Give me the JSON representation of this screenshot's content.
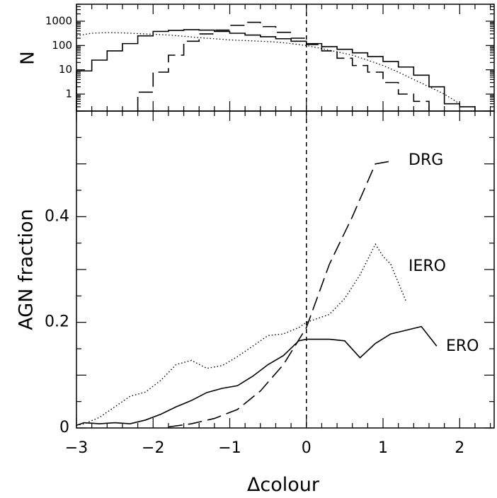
{
  "chart_data": [
    {
      "type": "line",
      "panel": "histogram",
      "ylabel": "N",
      "yscale": "log",
      "ylim": [
        0.2,
        5000
      ],
      "xlim": [
        -3,
        2.45
      ],
      "ytick_labels": [
        "1000",
        "100",
        "10",
        "1"
      ],
      "ytick_values": [
        1000,
        100,
        10,
        1
      ],
      "step": true,
      "series": [
        {
          "style": "solid",
          "bin_edges": [
            -3.0,
            -2.8,
            -2.6,
            -2.4,
            -2.2,
            -2.0,
            -1.8,
            -1.6,
            -1.4,
            -1.2,
            -1.0,
            -0.8,
            -0.6,
            -0.4,
            -0.2,
            0.0,
            0.2,
            0.4,
            0.6,
            0.8,
            1.0,
            1.2,
            1.4,
            1.6,
            1.8,
            2.0,
            2.2
          ],
          "counts": [
            9,
            25,
            60,
            120,
            250,
            380,
            420,
            450,
            430,
            380,
            320,
            270,
            230,
            190,
            150,
            120,
            90,
            70,
            50,
            35,
            22,
            13,
            6,
            2,
            0.4,
            0.3
          ]
        },
        {
          "style": "dashed",
          "bin_edges": [
            -2.2,
            -2.0,
            -1.8,
            -1.6,
            -1.4,
            -1.2,
            -1.0,
            -0.8,
            -0.6,
            -0.4,
            -0.2,
            0.0,
            0.2,
            0.4,
            0.6,
            0.8,
            1.0,
            1.2,
            1.4,
            1.6
          ],
          "counts": [
            1.2,
            8,
            40,
            150,
            300,
            430,
            680,
            900,
            600,
            350,
            200,
            110,
            60,
            30,
            15,
            8,
            3,
            1,
            0.5
          ]
        },
        {
          "style": "dotted",
          "x": [
            -3.0,
            -2.8,
            -2.6,
            -2.4,
            -2.2,
            -2.0,
            -1.8,
            -1.6,
            -1.4,
            -1.2,
            -1.0,
            -0.8,
            -0.6,
            -0.4,
            -0.2,
            0.0,
            0.2,
            0.4,
            0.6,
            0.8,
            1.0,
            1.2,
            1.4,
            1.6,
            1.8,
            2.0
          ],
          "counts": [
            250,
            320,
            340,
            330,
            310,
            290,
            270,
            240,
            210,
            190,
            170,
            160,
            150,
            140,
            120,
            100,
            75,
            55,
            40,
            25,
            15,
            8,
            4,
            2,
            1,
            0.4
          ]
        }
      ]
    },
    {
      "type": "line",
      "panel": "fraction",
      "xlabel": "Δcolour",
      "ylabel": "AGN fraction",
      "xlim": [
        -3,
        2.45
      ],
      "ylim": [
        0,
        0.6
      ],
      "xtick_labels": [
        "−3",
        "−2",
        "−1",
        "0",
        "1",
        "2"
      ],
      "xtick_values": [
        -3,
        -2,
        -1,
        0,
        1,
        2
      ],
      "ytick_labels": [
        "0",
        "0.2",
        "0.4"
      ],
      "ytick_values": [
        0,
        0.2,
        0.4
      ],
      "vline_x": 0,
      "series": [
        {
          "name": "ERO",
          "style": "solid",
          "x": [
            -3.0,
            -2.9,
            -2.7,
            -2.5,
            -2.3,
            -2.1,
            -1.9,
            -1.7,
            -1.5,
            -1.3,
            -1.1,
            -0.9,
            -0.7,
            -0.5,
            -0.3,
            -0.1,
            0.0,
            0.1,
            0.3,
            0.5,
            0.7,
            0.9,
            1.1,
            1.3,
            1.5,
            1.7
          ],
          "y": [
            0.005,
            0.01,
            0.008,
            0.01,
            0.008,
            0.015,
            0.026,
            0.04,
            0.052,
            0.067,
            0.075,
            0.08,
            0.098,
            0.12,
            0.137,
            0.165,
            0.168,
            0.168,
            0.168,
            0.165,
            0.133,
            0.16,
            0.178,
            0.185,
            0.192,
            0.155
          ]
        },
        {
          "name": "IERO",
          "style": "dotted",
          "x": [
            -3.0,
            -2.9,
            -2.7,
            -2.5,
            -2.3,
            -2.1,
            -1.9,
            -1.7,
            -1.5,
            -1.3,
            -1.1,
            -0.9,
            -0.7,
            -0.5,
            -0.3,
            -0.1,
            0.0,
            0.1,
            0.3,
            0.5,
            0.7,
            0.9,
            1.0,
            1.1,
            1.3
          ],
          "y": [
            0.005,
            0.008,
            0.02,
            0.04,
            0.06,
            0.068,
            0.09,
            0.12,
            0.128,
            0.113,
            0.118,
            0.135,
            0.155,
            0.175,
            0.178,
            0.19,
            0.2,
            0.205,
            0.215,
            0.245,
            0.29,
            0.348,
            0.325,
            0.31,
            0.24
          ]
        },
        {
          "name": "DRG",
          "style": "dashed",
          "x": [
            -1.8,
            -1.5,
            -1.2,
            -0.9,
            -0.6,
            -0.3,
            0.0,
            0.3,
            0.6,
            0.9,
            1.1
          ],
          "y": [
            0.002,
            0.008,
            0.018,
            0.035,
            0.07,
            0.12,
            0.19,
            0.31,
            0.4,
            0.5,
            0.505
          ]
        }
      ]
    }
  ]
}
